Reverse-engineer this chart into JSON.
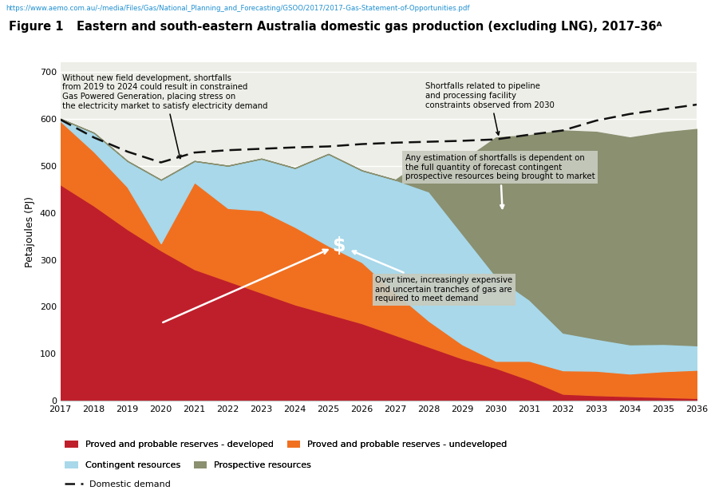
{
  "years": [
    2017,
    2018,
    2019,
    2020,
    2021,
    2022,
    2023,
    2024,
    2025,
    2026,
    2027,
    2028,
    2029,
    2030,
    2031,
    2032,
    2033,
    2034,
    2035,
    2036
  ],
  "proved_developed": [
    460,
    415,
    365,
    320,
    280,
    255,
    230,
    205,
    185,
    165,
    140,
    115,
    90,
    70,
    45,
    15,
    12,
    10,
    8,
    6
  ],
  "proved_undeveloped": [
    135,
    115,
    90,
    15,
    185,
    155,
    175,
    165,
    145,
    130,
    90,
    55,
    30,
    15,
    40,
    50,
    52,
    48,
    55,
    60
  ],
  "contingent": [
    5,
    40,
    55,
    135,
    45,
    90,
    110,
    125,
    195,
    195,
    240,
    275,
    235,
    180,
    130,
    80,
    68,
    62,
    58,
    52
  ],
  "prospective": [
    0,
    0,
    0,
    0,
    0,
    0,
    0,
    0,
    0,
    0,
    0,
    75,
    155,
    295,
    350,
    430,
    440,
    440,
    450,
    460
  ],
  "domestic_demand": [
    598,
    560,
    530,
    507,
    528,
    533,
    536,
    539,
    541,
    546,
    549,
    551,
    553,
    556,
    566,
    575,
    596,
    610,
    620,
    630
  ],
  "color_proved_developed": "#bf1f2b",
  "color_proved_undeveloped": "#f07020",
  "color_contingent": "#a8d8ea",
  "color_prospective": "#8a9070",
  "color_demand": "#111111",
  "url_text": "https://www.aemo.com.au/-/media/Files/Gas/National_Planning_and_Forecasting/GSOO/2017/2017-Gas-Statement-of-Opportunities.pdf",
  "figure_label": "Figure 1",
  "figure_title": "Eastern and south-eastern Australia domestic gas production (excluding LNG), 2017–36ᴬ",
  "ylabel": "Petajoules (PJ)",
  "ylim": [
    0,
    720
  ],
  "yticks": [
    0,
    100,
    200,
    300,
    400,
    500,
    600,
    700
  ],
  "bg_color": "#eeeee8",
  "legend_labels": [
    "Proved and probable reserves - developed",
    "Proved and probable reserves - undeveloped",
    "Contingent resources",
    "Prospective resources",
    "Domestic demand"
  ]
}
